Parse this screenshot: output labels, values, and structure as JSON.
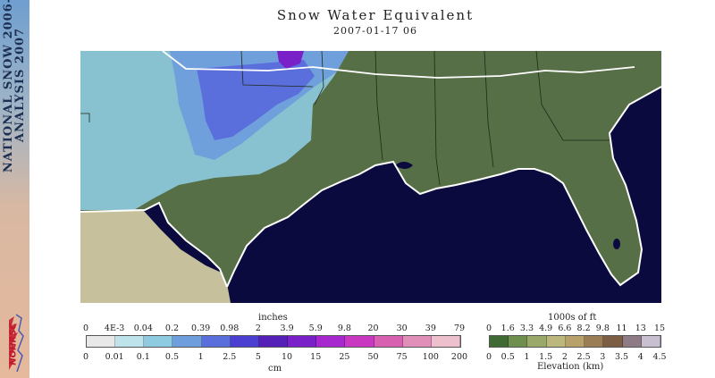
{
  "sidebar": {
    "lines": [
      "NATIONAL SNOW  2006-",
      "ANALYSIS  2007"
    ],
    "logo_text": "NOHRSC"
  },
  "header": {
    "title": "Snow Water Equivalent",
    "datetime": "2007-01-17 06"
  },
  "legend": {
    "snow": {
      "top_unit": "inches",
      "top_labels": [
        "0",
        "4E-3",
        "0.04",
        "0.2",
        "0.39",
        "0.98",
        "2",
        "3.9",
        "5.9",
        "9.8",
        "20",
        "30",
        "39",
        "79"
      ],
      "bottom_unit": "cm",
      "bottom_labels": [
        "0",
        "0.01",
        "0.1",
        "0.5",
        "1",
        "2.5",
        "5",
        "10",
        "15",
        "25",
        "50",
        "75",
        "100",
        "200"
      ],
      "colors": [
        "#e8e8e8",
        "#bfe3ea",
        "#8ecbe0",
        "#6f9edc",
        "#5a6fdc",
        "#4a3fd0",
        "#5420b8",
        "#7a20c8",
        "#a828d0",
        "#c838c0",
        "#d860b0",
        "#e090b8",
        "#ecc0cc"
      ]
    },
    "elevation": {
      "top_unit": "1000s of ft",
      "top_labels": [
        "0",
        "1.6",
        "3.3",
        "4.9",
        "6.6",
        "8.2",
        "9.8",
        "11",
        "13",
        "15"
      ],
      "bottom_unit": "Elevation (km)",
      "bottom_labels": [
        "0",
        "0.5",
        "1",
        "1.5",
        "2",
        "2.5",
        "3",
        "3.5",
        "4",
        "4.5"
      ],
      "colors": [
        "#3f6a33",
        "#6f8f4f",
        "#9aa96a",
        "#bcb87d",
        "#b8a06a",
        "#9a7d55",
        "#7b5e44",
        "#8e7b86",
        "#c8c0d0"
      ]
    }
  },
  "map": {
    "colors": {
      "land": "#566f47",
      "water": "#0a0a3e",
      "mexico": "#c6c09c",
      "boundary": "#ffffff",
      "state_line": "#1c2a18"
    }
  }
}
